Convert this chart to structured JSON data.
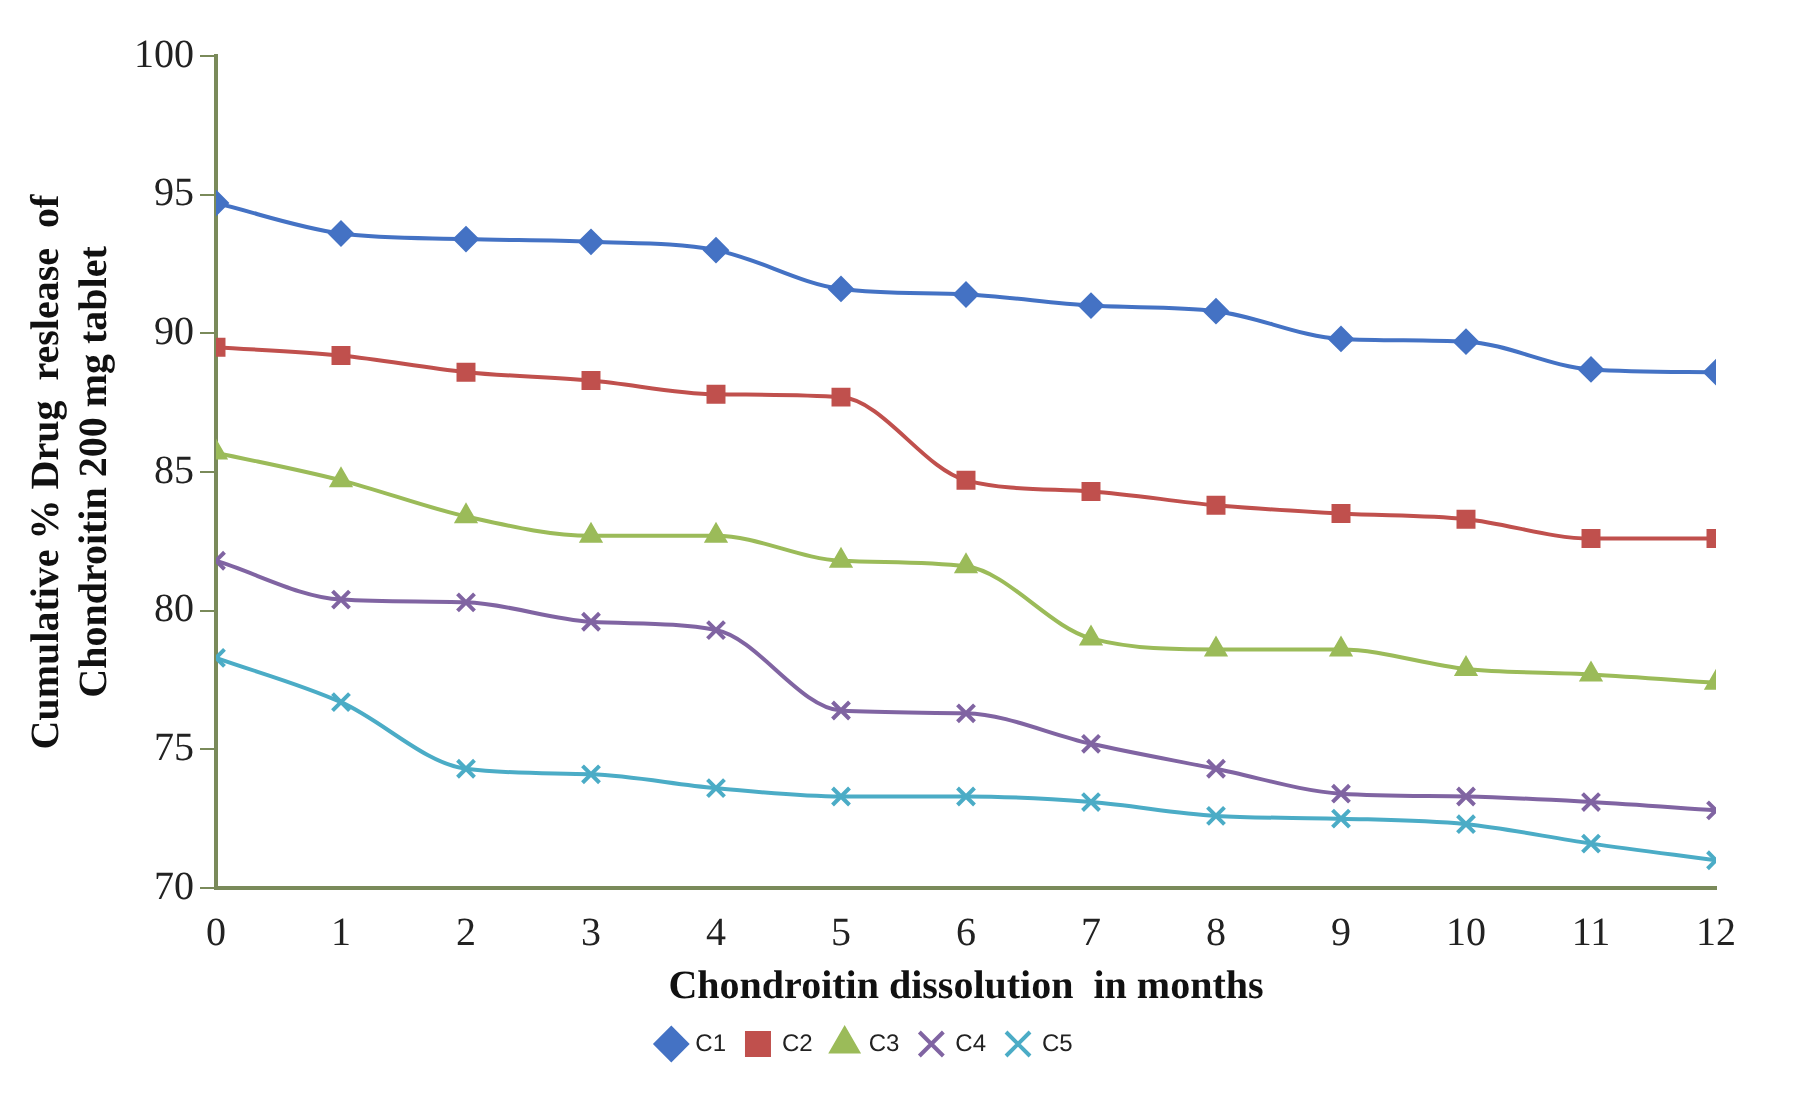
{
  "chart_data": {
    "type": "line",
    "xlabel": "Chondroitin dissolution  in months",
    "ylabel": "Cumulative % Drug  reslease  of Chondroitin 200 mg tablet",
    "x": [
      0,
      1,
      2,
      3,
      4,
      5,
      6,
      7,
      8,
      9,
      10,
      11,
      12
    ],
    "xlim": [
      0,
      12
    ],
    "xticks": [
      0,
      1,
      2,
      3,
      4,
      5,
      6,
      7,
      8,
      9,
      10,
      11,
      12
    ],
    "ylim": [
      70,
      100
    ],
    "yticks": [
      70,
      75,
      80,
      85,
      90,
      95,
      100
    ],
    "grid": false,
    "legend": "bottom",
    "series": [
      {
        "name": "C1",
        "color": "#4472c4",
        "marker": "diamond",
        "values": [
          94.7,
          93.6,
          93.4,
          93.3,
          93.0,
          91.6,
          91.4,
          91.0,
          90.8,
          89.8,
          89.7,
          88.7,
          88.6
        ]
      },
      {
        "name": "C2",
        "color": "#c0504d",
        "marker": "square",
        "values": [
          89.5,
          89.2,
          88.6,
          88.3,
          87.8,
          87.7,
          84.7,
          84.3,
          83.8,
          83.5,
          83.3,
          82.6,
          82.6
        ]
      },
      {
        "name": "C3",
        "color": "#9bbb59",
        "marker": "triangle",
        "values": [
          85.7,
          84.7,
          83.4,
          82.7,
          82.7,
          81.8,
          81.6,
          79.0,
          78.6,
          78.6,
          77.9,
          77.7,
          77.4
        ]
      },
      {
        "name": "C4",
        "color": "#8064a2",
        "marker": "cross",
        "values": [
          81.8,
          80.4,
          80.3,
          79.6,
          79.3,
          76.4,
          76.3,
          75.2,
          74.3,
          73.4,
          73.3,
          73.1,
          72.8
        ]
      },
      {
        "name": "C5",
        "color": "#4bacc6",
        "marker": "cross",
        "values": [
          78.3,
          76.7,
          74.3,
          74.1,
          73.6,
          73.3,
          73.3,
          73.1,
          72.6,
          72.5,
          72.3,
          71.6,
          71.0
        ]
      }
    ]
  }
}
